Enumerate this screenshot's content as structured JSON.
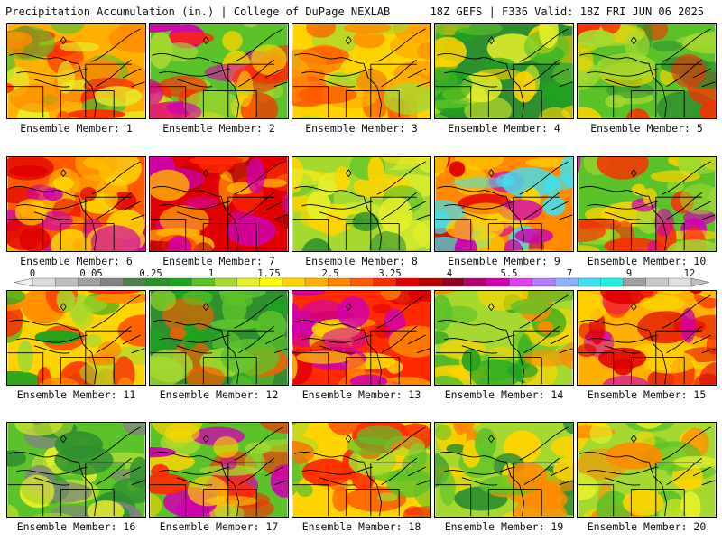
{
  "header": {
    "title": "Precipitation Accumulation (in.) | College of DuPage NEXLAB",
    "run_info": "18Z GEFS | F336 Valid: 18Z FRI JUN 06 2025"
  },
  "colorbar": {
    "tick_labels": [
      "0",
      "0.05",
      "0.25",
      "1",
      "1.75",
      "2.5",
      "3.25",
      "4",
      "5.5",
      "7",
      "9",
      "12"
    ],
    "colors": [
      "#dcdcdc",
      "#bebebe",
      "#a0a0a0",
      "#828282",
      "#4f7f4f",
      "#2f8f2f",
      "#1fa31f",
      "#5cc22a",
      "#a6d92f",
      "#e6f02a",
      "#ffff00",
      "#ffd400",
      "#ffb000",
      "#ff8a00",
      "#ff5a00",
      "#ff2a00",
      "#e00000",
      "#b80000",
      "#900020",
      "#b0006a",
      "#d000b0",
      "#e040f0",
      "#b080ff",
      "#8fb0ff",
      "#40e0f0",
      "#20f0e0",
      "#a0a0a0",
      "#c8c8c8",
      "#e0e0e0"
    ]
  },
  "panels": [
    {
      "label": "Ensemble Member: 1"
    },
    {
      "label": "Ensemble Member: 2"
    },
    {
      "label": "Ensemble Member: 3"
    },
    {
      "label": "Ensemble Member: 4"
    },
    {
      "label": "Ensemble Member: 5"
    },
    {
      "label": "Ensemble Member: 6"
    },
    {
      "label": "Ensemble Member: 7"
    },
    {
      "label": "Ensemble Member: 8"
    },
    {
      "label": "Ensemble Member: 9"
    },
    {
      "label": "Ensemble Member: 10"
    },
    {
      "label": "Ensemble Member: 11"
    },
    {
      "label": "Ensemble Member: 12"
    },
    {
      "label": "Ensemble Member: 13"
    },
    {
      "label": "Ensemble Member: 14"
    },
    {
      "label": "Ensemble Member: 15"
    },
    {
      "label": "Ensemble Member: 16"
    },
    {
      "label": "Ensemble Member: 17"
    },
    {
      "label": "Ensemble Member: 18"
    },
    {
      "label": "Ensemble Member: 19"
    },
    {
      "label": "Ensemble Member: 20"
    }
  ]
}
